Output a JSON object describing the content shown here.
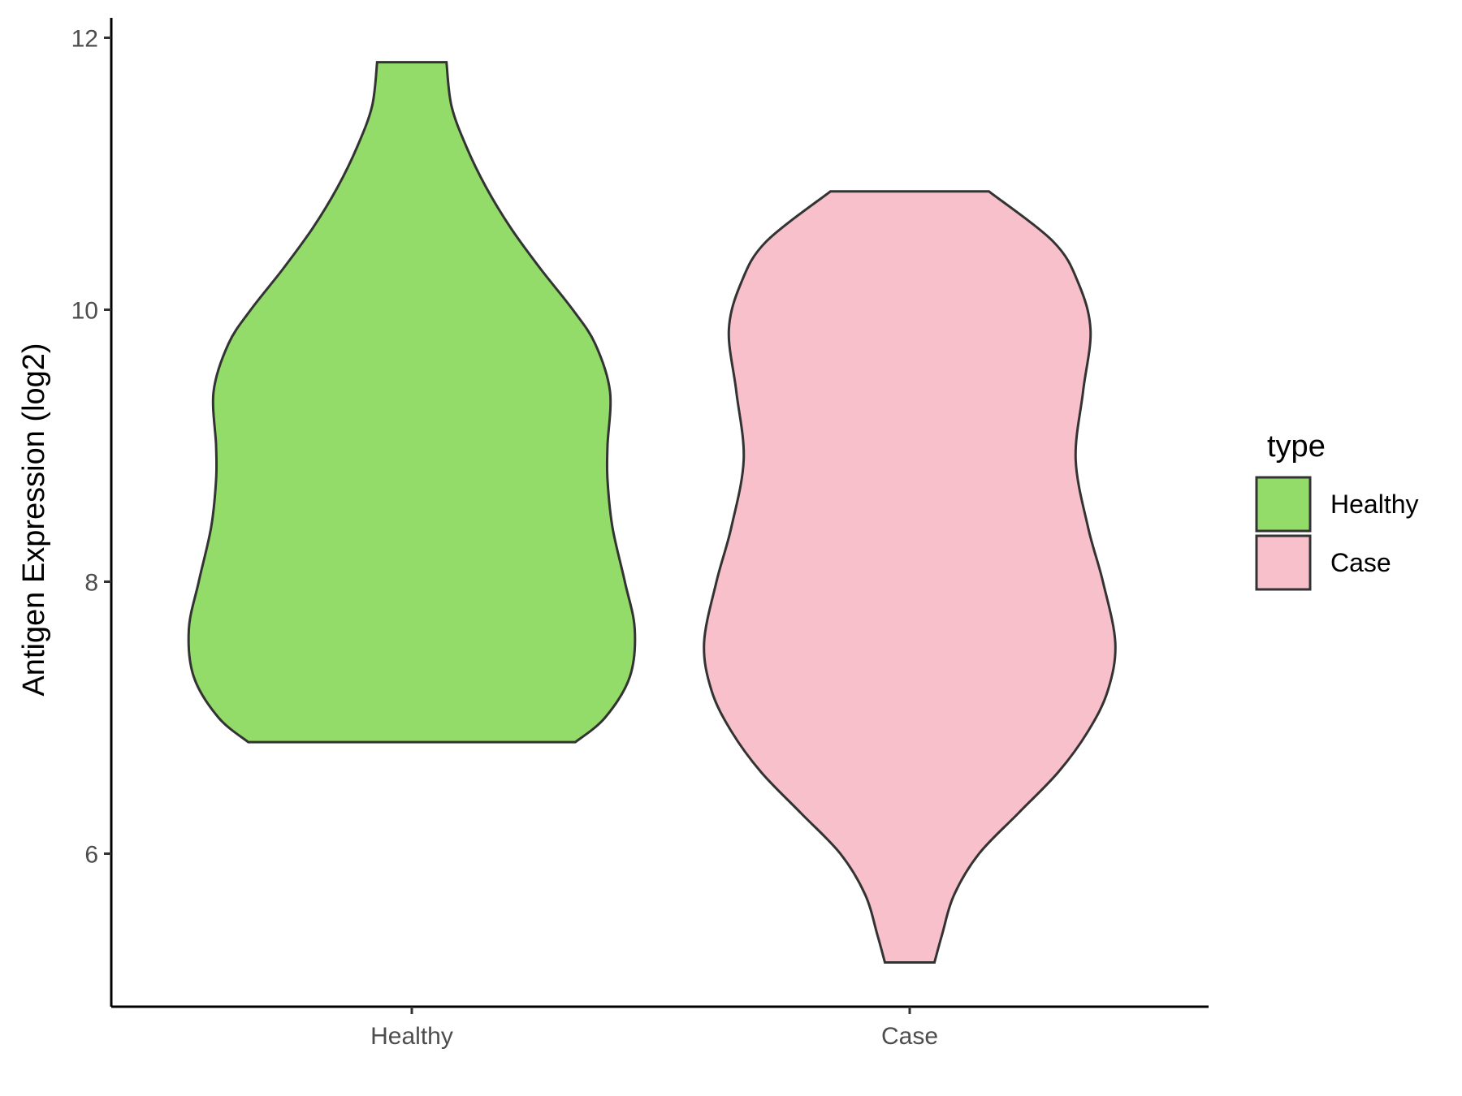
{
  "chart_data": {
    "type": "violin",
    "ylabel": "Antigen Expression (log2)",
    "xlabel": "",
    "ylim": [
      4.9,
      12.2
    ],
    "yticks": [
      6,
      8,
      10,
      12
    ],
    "categories": [
      "Healthy",
      "Case"
    ],
    "legend": {
      "title": "type",
      "placement": "right",
      "entries": [
        {
          "label": "Healthy",
          "color": "#93dc6a"
        },
        {
          "label": "Case",
          "color": "#f7c0cb"
        }
      ]
    },
    "series": [
      {
        "category": "Healthy",
        "color": "#93dc6a",
        "min": 6.82,
        "max": 11.82,
        "density": [
          [
            6.82,
            0.66
          ],
          [
            7.0,
            0.78
          ],
          [
            7.3,
            0.88
          ],
          [
            7.65,
            0.9
          ],
          [
            8.0,
            0.86
          ],
          [
            8.4,
            0.81
          ],
          [
            8.75,
            0.79
          ],
          [
            9.0,
            0.79
          ],
          [
            9.4,
            0.8
          ],
          [
            9.75,
            0.74
          ],
          [
            10.0,
            0.65
          ],
          [
            10.3,
            0.52
          ],
          [
            10.6,
            0.4
          ],
          [
            10.9,
            0.3
          ],
          [
            11.2,
            0.22
          ],
          [
            11.5,
            0.16
          ],
          [
            11.82,
            0.14
          ]
        ]
      },
      {
        "category": "Case",
        "color": "#f7c0cb",
        "min": 5.2,
        "max": 10.87,
        "density": [
          [
            5.2,
            0.1
          ],
          [
            5.4,
            0.13
          ],
          [
            5.7,
            0.18
          ],
          [
            6.0,
            0.28
          ],
          [
            6.3,
            0.44
          ],
          [
            6.6,
            0.6
          ],
          [
            6.9,
            0.72
          ],
          [
            7.2,
            0.8
          ],
          [
            7.55,
            0.83
          ],
          [
            8.0,
            0.78
          ],
          [
            8.4,
            0.72
          ],
          [
            8.9,
            0.67
          ],
          [
            9.4,
            0.7
          ],
          [
            9.85,
            0.73
          ],
          [
            10.2,
            0.68
          ],
          [
            10.5,
            0.58
          ],
          [
            10.87,
            0.32
          ]
        ]
      }
    ]
  }
}
